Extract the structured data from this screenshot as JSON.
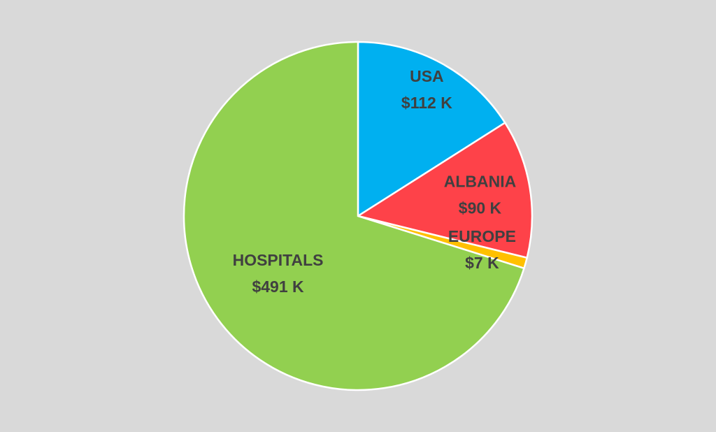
{
  "chart_data": {
    "type": "pie",
    "categories": [
      "USA",
      "ALBANIA",
      "EUROPE",
      "HOSPITALS"
    ],
    "values": [
      112000,
      90000,
      7000,
      491000
    ],
    "value_labels": [
      "$112 K",
      "$90 K",
      "$7 K",
      "$491 K"
    ],
    "colors": [
      "#00b0f0",
      "#fe4249",
      "#ffc000",
      "#92d050"
    ]
  }
}
